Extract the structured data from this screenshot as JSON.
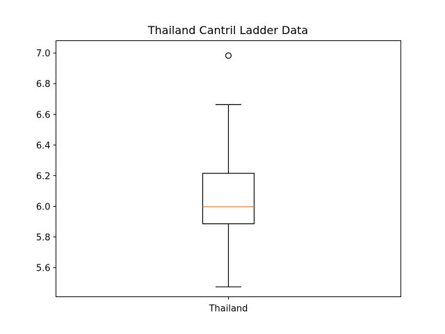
{
  "chart_data": {
    "type": "box",
    "title": "Thailand Cantril Ladder Data",
    "xlabel": "",
    "ylabel": "",
    "categories": [
      "Thailand"
    ],
    "series": [
      {
        "name": "Thailand",
        "whisker_low": 5.475,
        "q1": 5.886,
        "median": 5.997,
        "q3": 6.215,
        "whisker_high": 6.663,
        "outliers": [
          6.983
        ]
      }
    ],
    "ylim": [
      5.41,
      7.08
    ],
    "yticks": [
      5.6,
      5.8,
      6.0,
      6.2,
      6.4,
      6.6,
      6.8,
      7.0
    ],
    "ytick_labels": [
      "5.6",
      "5.8",
      "6.0",
      "6.2",
      "6.4",
      "6.6",
      "6.8",
      "7.0"
    ],
    "grid": false,
    "legend": "none",
    "colors": {
      "box": "#000000",
      "median": "#ff7f0e",
      "whisker": "#000000",
      "outlier": "#000000"
    }
  }
}
